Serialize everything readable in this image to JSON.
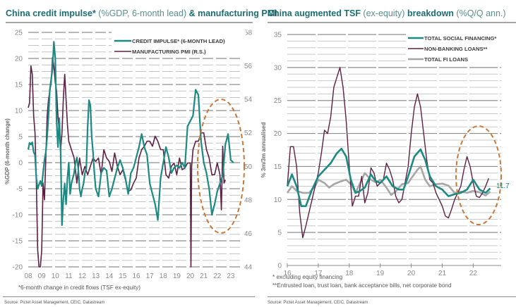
{
  "left": {
    "title_bold_1": "China credit impulse*",
    "title_normal": " (%GDP, 6-month lead) ",
    "title_bold_2": "& manufacturing PMI",
    "note": "*6-month change in credit flows (TSF ex-equity)",
    "source": "Source: Pictet Asset Management, CEIC, Datastream"
  },
  "right": {
    "title_bold_1": "China augmented TSF",
    "title_normal_1": " (ex-equity) ",
    "title_bold_2": "breakdown",
    "title_normal_2": " (%Q/Q ann.)",
    "note_1": "* excluding equity financing",
    "note_2": "**Entrusted loan, trust loan, bank acceptance bills, net corporate bond",
    "source": "Source: Pictet Asset Management, CEIC, Datastream",
    "end_label": "11.7"
  },
  "colors": {
    "teal": "#1a8a82",
    "plum": "#5e1f45",
    "grey": "#a6a6a6",
    "highlight": "#c8783a"
  },
  "chart_data": [
    {
      "type": "line",
      "title": "China credit impulse* (%GDP, 6-month lead) & manufacturing PMI",
      "xlabel": "",
      "ylabel": "%GDP (6-month change)",
      "y2label": "",
      "x_ticks": [
        "08",
        "09",
        "10",
        "11",
        "12",
        "13",
        "14",
        "15",
        "16",
        "17",
        "18",
        "19",
        "20",
        "21",
        "22",
        "23"
      ],
      "xlim": [
        2008.0,
        2023.8
      ],
      "ylim": [
        -20,
        25
      ],
      "y_ticks": [
        25,
        20,
        15,
        10,
        5,
        0,
        -5,
        -10,
        -15,
        -20
      ],
      "y2lim": [
        44,
        58
      ],
      "y2_ticks": [
        58,
        56,
        54,
        52,
        50,
        48,
        46,
        44
      ],
      "grid": true,
      "legend": "top-right",
      "annotation": "dashed ellipse highlighting 2021-2023",
      "series": [
        {
          "name": "CREDIT IMPULSE* (6-MONTH LEAD)",
          "axis": "left",
          "color_key": "teal",
          "x": [
            2008.0,
            2008.1,
            2008.2,
            2008.3,
            2008.4,
            2008.5,
            2008.6,
            2008.7,
            2008.8,
            2008.9,
            2009.0,
            2009.1,
            2009.2,
            2009.3,
            2009.4,
            2009.5,
            2009.6,
            2009.7,
            2009.8,
            2009.9,
            2010.0,
            2010.1,
            2010.2,
            2010.3,
            2010.4,
            2010.5,
            2010.6,
            2010.7,
            2010.8,
            2010.9,
            2011.0,
            2011.1,
            2011.2,
            2011.3,
            2011.4,
            2011.5,
            2011.6,
            2011.7,
            2011.8,
            2011.9,
            2012.0,
            2012.1,
            2012.2,
            2012.3,
            2012.4,
            2012.5,
            2012.6,
            2012.7,
            2012.8,
            2012.9,
            2013.0,
            2013.2,
            2013.4,
            2013.6,
            2013.8,
            2014.0,
            2014.2,
            2014.4,
            2014.6,
            2014.8,
            2015.0,
            2015.2,
            2015.4,
            2015.6,
            2015.8,
            2016.0,
            2016.2,
            2016.4,
            2016.6,
            2016.8,
            2017.0,
            2017.2,
            2017.4,
            2017.6,
            2017.8,
            2018.0,
            2018.2,
            2018.4,
            2018.6,
            2018.8,
            2019.0,
            2019.2,
            2019.4,
            2019.6,
            2019.8,
            2020.0,
            2020.2,
            2020.4,
            2020.6,
            2020.8,
            2021.0,
            2021.2,
            2021.4,
            2021.6,
            2021.8,
            2022.0,
            2022.2,
            2022.4,
            2022.6,
            2022.8,
            2023.0,
            2023.2
          ],
          "y": [
            2.5,
            3.8,
            3.5,
            3.9,
            2.0,
            1.5,
            -3.0,
            -5.0,
            -4.2,
            -3.5,
            -4.5,
            -2.0,
            0.5,
            2.0,
            5.0,
            9.0,
            14.0,
            16.0,
            18.0,
            23.2,
            20.0,
            8.0,
            3.0,
            8.5,
            2.0,
            -12.0,
            -7.0,
            -4.0,
            -8.0,
            -3.0,
            0.0,
            -6.0,
            -4.0,
            -3.0,
            -2.0,
            0.0,
            1.0,
            -1.0,
            -5.0,
            -6.5,
            -5.0,
            -4.0,
            -2.0,
            -1.0,
            7.0,
            12.0,
            11.0,
            5.0,
            2.0,
            -2.0,
            -5.0,
            -6.5,
            -2.0,
            -1.0,
            -1.5,
            -6.5,
            -5.0,
            -3.0,
            -1.0,
            0.5,
            -1.0,
            -3.0,
            -6.0,
            -2.0,
            -1.0,
            1.0,
            3.0,
            5.5,
            3.0,
            1.5,
            -4.0,
            -6.0,
            -8.0,
            -11.0,
            -3.0,
            0.0,
            3.0,
            1.0,
            -2.0,
            -1.0,
            -0.5,
            -1.0,
            0.0,
            -1.0,
            7.0,
            8.0,
            9.0,
            14.0,
            13.0,
            4.0,
            0.0,
            -2.0,
            -5.0,
            -10.0,
            -8.0,
            -5.5,
            -4.0,
            -2.5,
            3.5,
            5.5,
            0.5,
            0.0
          ]
        },
        {
          "name": "MANUFACTURING PMI (R.S.)",
          "axis": "right",
          "color_key": "plum",
          "x": [
            2008.0,
            2008.1,
            2008.2,
            2008.3,
            2008.4,
            2008.5,
            2008.6,
            2008.7,
            2008.8,
            2008.9,
            2009.0,
            2009.1,
            2009.2,
            2009.3,
            2009.4,
            2009.5,
            2009.6,
            2009.7,
            2009.8,
            2009.9,
            2010.0,
            2010.1,
            2010.2,
            2010.3,
            2010.4,
            2010.5,
            2010.6,
            2010.7,
            2010.8,
            2010.9,
            2011.0,
            2011.2,
            2011.4,
            2011.6,
            2011.8,
            2012.0,
            2012.2,
            2012.4,
            2012.6,
            2012.8,
            2013.0,
            2013.2,
            2013.4,
            2013.6,
            2013.8,
            2014.0,
            2014.2,
            2014.4,
            2014.6,
            2014.8,
            2015.0,
            2015.2,
            2015.4,
            2015.6,
            2015.8,
            2016.0,
            2016.2,
            2016.4,
            2016.6,
            2016.8,
            2017.0,
            2017.2,
            2017.4,
            2017.6,
            2017.8,
            2018.0,
            2018.2,
            2018.4,
            2018.6,
            2018.8,
            2019.0,
            2019.2,
            2019.4,
            2019.6,
            2019.8,
            2020.0,
            2020.05,
            2020.1,
            2020.2,
            2020.4,
            2020.6,
            2020.8,
            2021.0,
            2021.2,
            2021.4,
            2021.6,
            2021.8,
            2022.0,
            2022.2,
            2022.3,
            2022.4,
            2022.5,
            2022.6
          ],
          "y": [
            53.5,
            53.8,
            56.0,
            55.5,
            53.0,
            52.0,
            49.0,
            45.0,
            38.8,
            38.8,
            45.0,
            49.0,
            48.0,
            50.5,
            53.0,
            54.0,
            54.5,
            55.0,
            56.5,
            56.0,
            55.0,
            54.5,
            53.0,
            52.0,
            51.0,
            52.0,
            54.0,
            55.5,
            54.0,
            52.5,
            51.5,
            51.0,
            50.5,
            49.0,
            50.5,
            49.5,
            50.0,
            49.5,
            50.0,
            50.5,
            50.3,
            50.5,
            49.5,
            51.0,
            50.5,
            50.3,
            49.7,
            50.8,
            50.0,
            49.5,
            49.8,
            49.2,
            48.5,
            48.6,
            49.0,
            49.3,
            50.5,
            51.0,
            51.2,
            51.5,
            51.5,
            51.2,
            51.8,
            51.5,
            51.0,
            51.0,
            49.5,
            49.3,
            50.0,
            50.2,
            49.5,
            50.5,
            49.8,
            49.9,
            50.2,
            50.2,
            35.7,
            50.0,
            51.0,
            51.5,
            51.5,
            52.0,
            52.0,
            51.0,
            50.5,
            49.5,
            49.5,
            50.2,
            49.5,
            47.4,
            51.2,
            49.0,
            49.2
          ]
        }
      ]
    },
    {
      "type": "line",
      "title": "China augmented TSF (ex-equity) breakdown (%Q/Q ann.)",
      "xlabel": "",
      "ylabel": "% 3m/3m annualised",
      "x_ticks": [
        "16",
        "17",
        "18",
        "19",
        "20",
        "21",
        "22"
      ],
      "xlim": [
        2016.0,
        2022.9
      ],
      "ylim": [
        0,
        35
      ],
      "y_ticks": [
        35,
        30,
        25,
        20,
        15,
        10,
        5,
        0
      ],
      "grid": true,
      "legend": "top-right",
      "annotation": "dashed ellipse highlighting 2021.5-2022.8; end label 11.7",
      "series": [
        {
          "name": "TOTAL SOCIAL FINANCING*",
          "color_key": "teal",
          "x": [
            2016.0,
            2016.15,
            2016.3,
            2016.45,
            2016.6,
            2016.8,
            2017.0,
            2017.2,
            2017.4,
            2017.6,
            2017.75,
            2017.9,
            2018.05,
            2018.2,
            2018.35,
            2018.5,
            2018.7,
            2018.85,
            2019.0,
            2019.2,
            2019.4,
            2019.6,
            2019.75,
            2019.9,
            2020.1,
            2020.3,
            2020.45,
            2020.6,
            2020.8,
            2021.0,
            2021.2,
            2021.4,
            2021.6,
            2021.8,
            2022.0,
            2022.2,
            2022.4,
            2022.55
          ],
          "y": [
            12.0,
            13.8,
            12.0,
            9.0,
            9.0,
            11.5,
            13.5,
            14.5,
            15.5,
            17.0,
            17.7,
            16.5,
            13.0,
            11.0,
            11.3,
            11.8,
            13.8,
            12.8,
            12.5,
            13.5,
            12.0,
            11.5,
            11.5,
            13.5,
            16.5,
            17.6,
            16.0,
            13.5,
            12.0,
            11.5,
            10.5,
            10.8,
            11.0,
            11.5,
            13.0,
            11.5,
            11.0,
            11.7
          ]
        },
        {
          "name": "NON-BANKING LOANS**",
          "color_key": "plum",
          "x": [
            2016.0,
            2016.1,
            2016.2,
            2016.3,
            2016.4,
            2016.5,
            2016.6,
            2016.8,
            2017.0,
            2017.1,
            2017.2,
            2017.3,
            2017.4,
            2017.5,
            2017.6,
            2017.7,
            2017.8,
            2017.9,
            2018.0,
            2018.1,
            2018.2,
            2018.3,
            2018.4,
            2018.5,
            2018.6,
            2018.7,
            2018.8,
            2018.9,
            2019.0,
            2019.1,
            2019.2,
            2019.3,
            2019.4,
            2019.5,
            2019.6,
            2019.7,
            2019.8,
            2019.9,
            2020.0,
            2020.1,
            2020.2,
            2020.3,
            2020.4,
            2020.5,
            2020.6,
            2020.7,
            2020.8,
            2020.9,
            2021.0,
            2021.1,
            2021.2,
            2021.3,
            2021.4,
            2021.5,
            2021.6,
            2021.7,
            2021.8,
            2021.9,
            2022.0,
            2022.1,
            2022.2,
            2022.3,
            2022.4,
            2022.5
          ],
          "y": [
            12.0,
            18.0,
            18.0,
            15.0,
            8.0,
            4.2,
            6.0,
            10.0,
            14.0,
            17.0,
            20.5,
            20.0,
            22.5,
            27.0,
            28.5,
            30.0,
            27.0,
            22.0,
            15.0,
            9.0,
            10.5,
            10.5,
            13.5,
            9.5,
            11.0,
            14.8,
            14.0,
            12.0,
            12.5,
            13.0,
            15.5,
            14.5,
            13.0,
            10.5,
            9.5,
            10.0,
            12.5,
            15.0,
            20.0,
            24.0,
            26.0,
            24.0,
            20.0,
            16.0,
            13.0,
            12.5,
            11.0,
            10.0,
            9.0,
            7.5,
            7.2,
            8.5,
            10.0,
            11.0,
            12.0,
            14.5,
            16.5,
            15.0,
            12.5,
            10.5,
            10.3,
            11.0,
            12.0,
            13.2
          ]
        },
        {
          "name": "TOTAL FI LOANS",
          "color_key": "grey",
          "x": [
            2016.0,
            2016.15,
            2016.3,
            2016.5,
            2016.7,
            2016.9,
            2017.0,
            2017.2,
            2017.35,
            2017.5,
            2017.7,
            2017.9,
            2018.05,
            2018.2,
            2018.35,
            2018.5,
            2018.7,
            2018.85,
            2019.0,
            2019.2,
            2019.35,
            2019.5,
            2019.7,
            2019.9,
            2020.0,
            2020.2,
            2020.3,
            2020.45,
            2020.6,
            2020.8,
            2021.0,
            2021.2,
            2021.4,
            2021.6,
            2021.8,
            2022.0,
            2022.2,
            2022.4,
            2022.55
          ],
          "y": [
            11.0,
            12.0,
            11.3,
            11.0,
            11.0,
            12.0,
            13.0,
            12.5,
            11.8,
            12.3,
            12.7,
            13.0,
            12.3,
            11.0,
            12.5,
            14.0,
            13.0,
            12.6,
            13.0,
            11.8,
            10.7,
            11.2,
            12.3,
            12.5,
            13.2,
            14.5,
            15.0,
            13.0,
            12.0,
            12.3,
            12.4,
            12.1,
            11.0,
            11.2,
            11.0,
            11.3,
            11.1,
            10.6,
            11.2
          ]
        }
      ]
    }
  ]
}
